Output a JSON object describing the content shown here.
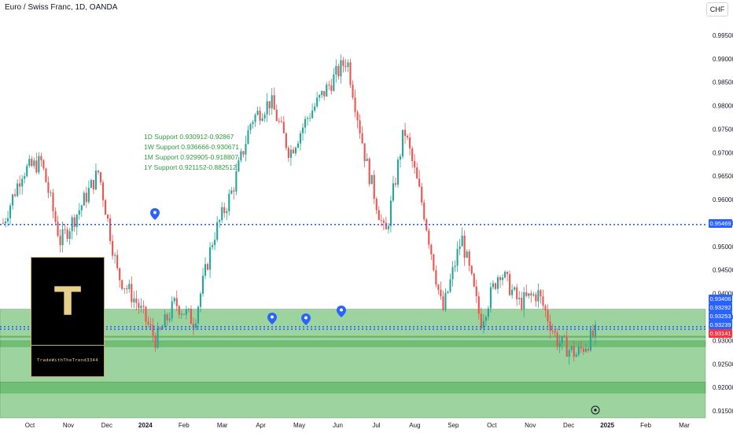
{
  "header": {
    "symbol_title": "Euro / Swiss Franc, 1D, OANDA",
    "currency_label": "CHF"
  },
  "annotations": {
    "support_lines": [
      "1D Support 0.930912-0.92867",
      "1W Support 0.936666-0.930671",
      "1M Support 0.929905-0.918807",
      "1Y Support 0.921152-0.882512"
    ]
  },
  "logo": {
    "letter": "T",
    "caption": "TradeWithTheTrend3344"
  },
  "price_tags": [
    {
      "label": "0.95469",
      "value": 0.95469,
      "color": "#2962ff"
    },
    {
      "label": "0.93406",
      "value": 0.93406,
      "color": "#2962ff"
    },
    {
      "label": "0.93292",
      "value": 0.93292,
      "color": "#2962ff"
    },
    {
      "label": "0.93253",
      "value": 0.93253,
      "color": "#2962ff"
    },
    {
      "label": "0.93239",
      "value": 0.93239,
      "color": "#2962ff"
    },
    {
      "label": "0.93141",
      "value": 0.93141,
      "color": "#f23645"
    }
  ],
  "chart_data": {
    "type": "candlestick",
    "y_axis_ticks": [
      "0.99500",
      "0.99000",
      "0.98500",
      "0.98000",
      "0.97500",
      "0.97000",
      "0.96500",
      "0.96000",
      "0.95500",
      "0.95000",
      "0.94500",
      "0.94000",
      "0.93500",
      "0.93000",
      "0.92500",
      "0.92000",
      "0.91500"
    ],
    "ylim": [
      0.9135,
      0.9995
    ],
    "x_axis_ticks": [
      "Oct",
      "Nov",
      "Dec",
      "2024",
      "Feb",
      "Mar",
      "Apr",
      "May",
      "Jun",
      "Jul",
      "Aug",
      "Sep",
      "Oct",
      "Nov",
      "Dec",
      "2025",
      "Feb",
      "Mar"
    ],
    "x_tick_index": [
      0,
      1,
      2,
      3,
      4,
      5,
      6,
      7,
      8,
      9,
      10,
      11,
      12,
      13,
      14,
      15,
      16,
      17
    ],
    "support_zones": [
      {
        "name": "1W Support",
        "low": 0.930671,
        "high": 0.936666,
        "color": "#4caf50"
      },
      {
        "name": "1D Support",
        "low": 0.92867,
        "high": 0.930912,
        "color": "#4caf50"
      },
      {
        "name": "1M Support",
        "low": 0.918807,
        "high": 0.929905,
        "color": "#4caf50"
      },
      {
        "name": "1Y Support",
        "low": 0.882512,
        "high": 0.921152,
        "color": "#4caf50"
      }
    ],
    "horizontal_lines": [
      {
        "value": 0.95469,
        "style": "dotted",
        "color": "#2962ff"
      },
      {
        "value": 0.93292,
        "style": "dotted",
        "color": "#2962ff"
      },
      {
        "value": 0.93239,
        "style": "dotted",
        "color": "#2962ff"
      }
    ],
    "price_path": [
      {
        "month": "Oct",
        "close": 0.955
      },
      {
        "month": "Oct",
        "close": 0.966
      },
      {
        "month": "Oct",
        "close": 0.968
      },
      {
        "month": "Nov",
        "close": 0.951
      },
      {
        "month": "Nov",
        "close": 0.958
      },
      {
        "month": "Nov",
        "close": 0.966
      },
      {
        "month": "Dec",
        "close": 0.944
      },
      {
        "month": "Dec",
        "close": 0.938
      },
      {
        "month": "2024",
        "close": 0.93
      },
      {
        "month": "2024",
        "close": 0.938
      },
      {
        "month": "Feb",
        "close": 0.934
      },
      {
        "month": "Feb",
        "close": 0.952
      },
      {
        "month": "Mar",
        "close": 0.962
      },
      {
        "month": "Mar",
        "close": 0.977
      },
      {
        "month": "Apr",
        "close": 0.981
      },
      {
        "month": "Apr",
        "close": 0.97
      },
      {
        "month": "May",
        "close": 0.978
      },
      {
        "month": "May",
        "close": 0.984
      },
      {
        "month": "Jun",
        "close": 0.99
      },
      {
        "month": "Jun",
        "close": 0.968
      },
      {
        "month": "Jul",
        "close": 0.952
      },
      {
        "month": "Jul",
        "close": 0.975
      },
      {
        "month": "Aug",
        "close": 0.958
      },
      {
        "month": "Aug",
        "close": 0.936
      },
      {
        "month": "Sep",
        "close": 0.952
      },
      {
        "month": "Sep",
        "close": 0.934
      },
      {
        "month": "Oct",
        "close": 0.945
      },
      {
        "month": "Oct",
        "close": 0.938
      },
      {
        "month": "Nov",
        "close": 0.94
      },
      {
        "month": "Nov",
        "close": 0.93
      },
      {
        "month": "Dec",
        "close": 0.927
      },
      {
        "month": "Dec",
        "close": 0.93141
      }
    ]
  },
  "colors": {
    "up": "#26a69a",
    "down": "#ef5350",
    "zone": "#4caf50",
    "dotted": "#2962ff",
    "marker": "#2962ff"
  }
}
